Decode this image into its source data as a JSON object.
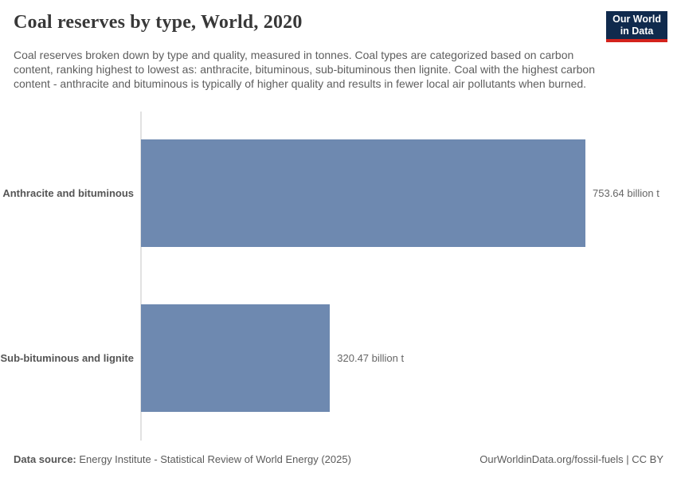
{
  "header": {
    "title": "Coal reserves by type, World, 2020",
    "subtitle": "Coal reserves broken down by type and quality, measured in tonnes. Coal types are categorized based on carbon content, ranking highest to lowest as: anthracite, bituminous, sub-bituminous then lignite. Coal with the highest carbon content - anthracite and bituminous is typically of higher quality and results in fewer local air pollutants when burned."
  },
  "logo": {
    "line1": "Our World",
    "line2": "in Data"
  },
  "chart_data": {
    "type": "bar",
    "orientation": "horizontal",
    "title": "Coal reserves by type, World, 2020",
    "unit": "billion tonnes",
    "categories": [
      "Anthracite and bituminous",
      "Sub-bituminous and lignite"
    ],
    "values": [
      753.64,
      320.47
    ],
    "value_labels": [
      "753.64 billion t",
      "320.47 billion t"
    ],
    "xlim": [
      0,
      753.64
    ],
    "grid": false,
    "legend": "none"
  },
  "footer": {
    "datasource_label": "Data source:",
    "datasource_value": "Energy Institute - Statistical Review of World Energy (2025)",
    "license": "OurWorldinData.org/fossil-fuels | CC BY"
  },
  "colors": {
    "bar": "#6e89b0",
    "logo_bg": "#102a4d",
    "logo_stripe": "#d4231c",
    "title_text": "#383838",
    "subtitle_text": "#5e5e5e",
    "entity_label_text": "#555555",
    "value_label_text": "#666666",
    "axis_line": "#e2e2e2"
  }
}
